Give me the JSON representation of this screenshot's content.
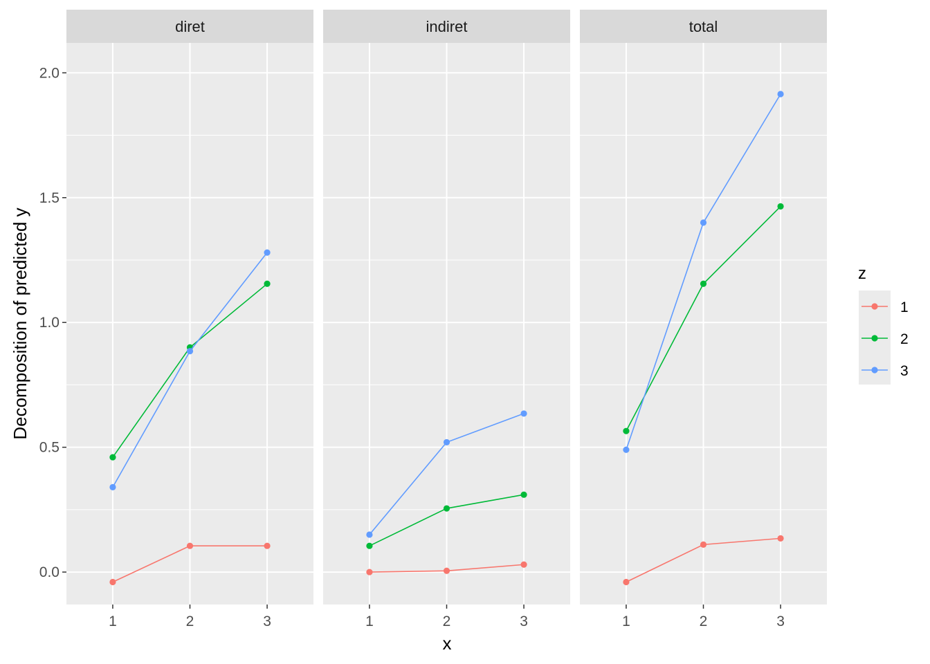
{
  "chart_data": {
    "type": "line",
    "facets": [
      "diret",
      "indiret",
      "total"
    ],
    "x": [
      1,
      2,
      3
    ],
    "x_tick_labels": [
      "1",
      "2",
      "3"
    ],
    "y_tick_labels": [
      "0.0",
      "0.5",
      "1.0",
      "1.5",
      "2.0"
    ],
    "y_ticks": [
      0.0,
      0.5,
      1.0,
      1.5,
      2.0
    ],
    "xlim": [
      0.4,
      3.6
    ],
    "ylim": [
      -0.13,
      2.12
    ],
    "xlabel": "x",
    "ylabel": "Decomposition of predicted y",
    "legend": {
      "title": "z",
      "position": "right",
      "entries": [
        "1",
        "2",
        "3"
      ]
    },
    "background": "#ebebeb",
    "grid_color": "#ffffff",
    "strip_color": "#d9d9d9",
    "series": [
      {
        "name": "1",
        "color": "#F8766D",
        "panels": {
          "diret": [
            -0.04,
            0.105,
            0.105
          ],
          "indiret": [
            0.0,
            0.005,
            0.03
          ],
          "total": [
            -0.04,
            0.11,
            0.135
          ]
        }
      },
      {
        "name": "2",
        "color": "#00BA38",
        "panels": {
          "diret": [
            0.46,
            0.9,
            1.155
          ],
          "indiret": [
            0.105,
            0.255,
            0.31
          ],
          "total": [
            0.565,
            1.155,
            1.465
          ]
        }
      },
      {
        "name": "3",
        "color": "#619CFF",
        "panels": {
          "diret": [
            0.34,
            0.885,
            1.28
          ],
          "indiret": [
            0.15,
            0.52,
            0.635
          ],
          "total": [
            0.49,
            1.4,
            1.915
          ]
        }
      }
    ]
  }
}
